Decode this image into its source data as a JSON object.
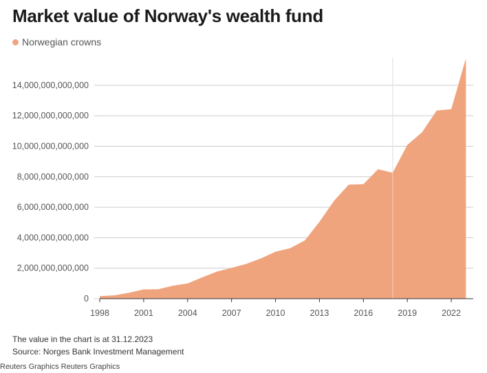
{
  "title": "Market value of Norway's wealth fund",
  "legend": {
    "label": "Norwegian crowns",
    "color": "#efa47e"
  },
  "footnote": "The value in the chart is at 31.12.2023",
  "source": "Source: Norges Bank Investment Management",
  "credit": "Reuters Graphics Reuters Graphics",
  "chart_data": {
    "type": "area",
    "title": "Market value of Norway's wealth fund",
    "xlabel": "",
    "ylabel": "",
    "x": [
      1998,
      1999,
      2000,
      2001,
      2002,
      2003,
      2004,
      2005,
      2006,
      2007,
      2008,
      2009,
      2010,
      2011,
      2012,
      2013,
      2014,
      2015,
      2016,
      2017,
      2018,
      2019,
      2020,
      2021,
      2022,
      2023
    ],
    "series": [
      {
        "name": "Norwegian crowns",
        "color": "#efa47e",
        "values": [
          170000000000,
          220000000000,
          390000000000,
          610000000000,
          620000000000,
          850000000000,
          1000000000000,
          1400000000000,
          1780000000000,
          2020000000000,
          2280000000000,
          2640000000000,
          3080000000000,
          3310000000000,
          3820000000000,
          5040000000000,
          6430000000000,
          7480000000000,
          7510000000000,
          8490000000000,
          8260000000000,
          10090000000000,
          10910000000000,
          12340000000000,
          12430000000000,
          15770000000000
        ]
      }
    ],
    "yticks": [
      0,
      2000000000000,
      4000000000000,
      6000000000000,
      8000000000000,
      10000000000000,
      12000000000000,
      14000000000000
    ],
    "ytick_labels": [
      "0",
      "2,000,000,000,000",
      "4,000,000,000,000",
      "6,000,000,000,000",
      "8,000,000,000,000",
      "10,000,000,000,000",
      "12,000,000,000,000",
      "14,000,000,000,000"
    ],
    "xticks": [
      1998,
      2001,
      2004,
      2007,
      2010,
      2013,
      2016,
      2019,
      2022
    ],
    "xtick_labels": [
      "1998",
      "2001",
      "2004",
      "2007",
      "2010",
      "2013",
      "2016",
      "2019",
      "2022"
    ],
    "xlim": [
      1998,
      2023.5
    ],
    "ylim": [
      0,
      15800000000000
    ],
    "grid": "horizontal",
    "legend_position": "top-left",
    "highlight_x": 2018,
    "colors": {
      "area": "#efa47e",
      "grid": "#cccccc",
      "axis": "#333333",
      "tick_text": "#555555"
    }
  }
}
